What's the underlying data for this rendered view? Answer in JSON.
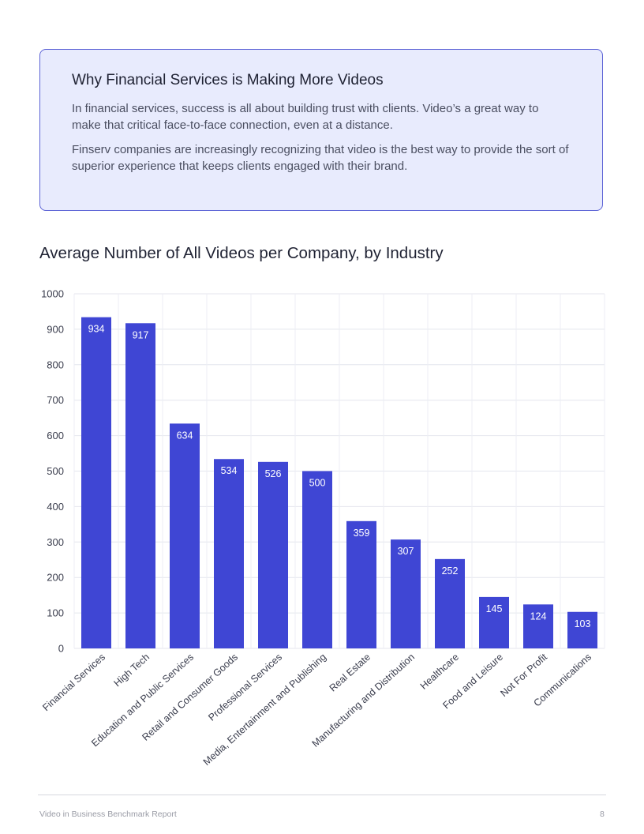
{
  "callout": {
    "title": "Why Financial Services is Making More Videos",
    "paragraphs": [
      "In financial services, success is all about building trust with clients. Video’s a great way to make that critical face-to-face connection, even at a distance.",
      "Finserv companies are increasingly recognizing that video is the best way to provide the sort of superior experience that keeps clients engaged with their brand."
    ]
  },
  "chart_data": {
    "type": "bar",
    "title": "Average Number of All Videos per Company, by Industry",
    "xlabel": "",
    "ylabel": "",
    "ylim": [
      0,
      1000
    ],
    "yticks": [
      0,
      100,
      200,
      300,
      400,
      500,
      600,
      700,
      800,
      900,
      1000
    ],
    "grid": true,
    "bar_color": "#3f46d4",
    "label_color": "#ffffff",
    "categories": [
      "Financial Services",
      "High Tech",
      "Education and Public Services",
      "Retail and Consumer Goods",
      "Professional Services",
      "Media, Entertainment and Publishing",
      "Real Estate",
      "Manufacturing and Distribution",
      "Healthcare",
      "Food and Leisure",
      "Not For Profit",
      "Communications"
    ],
    "values": [
      934,
      917,
      634,
      534,
      526,
      500,
      359,
      307,
      252,
      145,
      124,
      103
    ]
  },
  "footer": {
    "report_name": "Video in Business Benchmark Report",
    "page_number": "8"
  }
}
